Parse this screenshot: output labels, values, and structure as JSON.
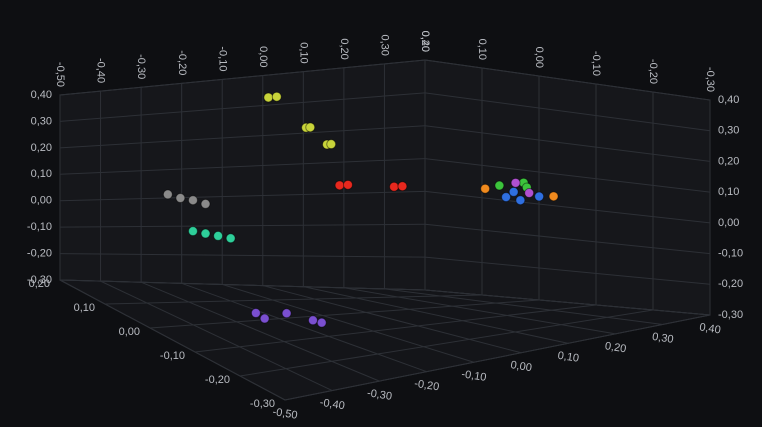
{
  "chart_data": {
    "type": "scatter3d",
    "xlim": [
      -0.5,
      0.4
    ],
    "ylim": [
      -0.3,
      0.4
    ],
    "zlim": [
      -0.3,
      0.2
    ],
    "xticks": [
      {
        "value": -0.5,
        "label": "-0,50"
      },
      {
        "value": -0.4,
        "label": "-0,40"
      },
      {
        "value": -0.3,
        "label": "-0,30"
      },
      {
        "value": -0.2,
        "label": "-0,20"
      },
      {
        "value": -0.1,
        "label": "-0,10"
      },
      {
        "value": 0,
        "label": "0,00"
      },
      {
        "value": 0.1,
        "label": "0,10"
      },
      {
        "value": 0.2,
        "label": "0,20"
      },
      {
        "value": 0.3,
        "label": "0,30"
      },
      {
        "value": 0.4,
        "label": "0,40"
      }
    ],
    "yticks": [
      {
        "value": -0.3,
        "label": "-0,30"
      },
      {
        "value": -0.2,
        "label": "-0,20"
      },
      {
        "value": -0.1,
        "label": "-0,10"
      },
      {
        "value": 0,
        "label": "0,00"
      },
      {
        "value": 0.1,
        "label": "0,10"
      },
      {
        "value": 0.2,
        "label": "0,20"
      },
      {
        "value": 0.3,
        "label": "0,30"
      },
      {
        "value": 0.4,
        "label": "0,40"
      }
    ],
    "zticks": [
      {
        "value": -0.3,
        "label": "-0,30"
      },
      {
        "value": -0.2,
        "label": "-0,20"
      },
      {
        "value": -0.1,
        "label": "-0,10"
      },
      {
        "value": 0,
        "label": "0,00"
      },
      {
        "value": 0.1,
        "label": "0,10"
      },
      {
        "value": 0.2,
        "label": "0,20"
      }
    ],
    "grid": true,
    "series": [
      {
        "color": "#c8d43a",
        "x": [
          -0.11,
          -0.09,
          -0.02,
          -0.01,
          0.03,
          0.04
        ],
        "y": [
          0.37,
          0.37,
          0.26,
          0.26,
          0.2,
          0.2
        ],
        "z": [
          0.1,
          0.1,
          0.1,
          0.1,
          0.1,
          0.1
        ]
      },
      {
        "color": "#8a8a8a",
        "x": [
          -0.35,
          -0.32,
          -0.29,
          -0.26
        ],
        "y": [
          0.07,
          0.055,
          0.045,
          0.03
        ],
        "z": [
          0.1,
          0.1,
          0.1,
          0.1
        ]
      },
      {
        "color": "#2ecf9a",
        "x": [
          -0.29,
          -0.26,
          -0.23,
          -0.2
        ],
        "y": [
          -0.06,
          -0.07,
          -0.08,
          -0.09
        ],
        "z": [
          0.1,
          0.1,
          0.1,
          0.1
        ]
      },
      {
        "color": "#e8281e",
        "x": [
          0.06,
          0.08,
          0.19,
          0.21
        ],
        "y": [
          0.065,
          0.065,
          0.05,
          0.05
        ],
        "z": [
          0.1,
          0.1,
          0.1,
          0.1
        ]
      },
      {
        "color": "#7a4fd0",
        "x": [
          -0.31,
          -0.29,
          -0.24,
          -0.18,
          -0.16
        ],
        "y": [
          -0.24,
          -0.26,
          -0.25,
          -0.28,
          -0.29
        ],
        "z": [
          -0.05,
          -0.05,
          -0.05,
          -0.05,
          -0.05
        ]
      },
      {
        "color": "#3cc43c",
        "x": [
          0.27,
          0.3,
          0.32
        ],
        "y": [
          0.08,
          0.09,
          0.07
        ],
        "z": [
          -0.03,
          -0.05,
          -0.04
        ]
      },
      {
        "color": "#2f6fe0",
        "x": [
          0.26,
          0.28,
          0.29,
          0.31
        ],
        "y": [
          0.05,
          0.04,
          0.06,
          0.05
        ],
        "z": [
          -0.05,
          -0.06,
          -0.04,
          -0.07
        ]
      },
      {
        "color": "#f08a1e",
        "x": [
          0.25,
          0.33
        ],
        "y": [
          0.07,
          0.05
        ],
        "z": [
          -0.02,
          -0.08
        ]
      },
      {
        "color": "#b050d0",
        "x": [
          0.3,
          0.32
        ],
        "y": [
          0.06,
          0.08
        ],
        "z": [
          -0.06,
          -0.02
        ]
      }
    ]
  }
}
